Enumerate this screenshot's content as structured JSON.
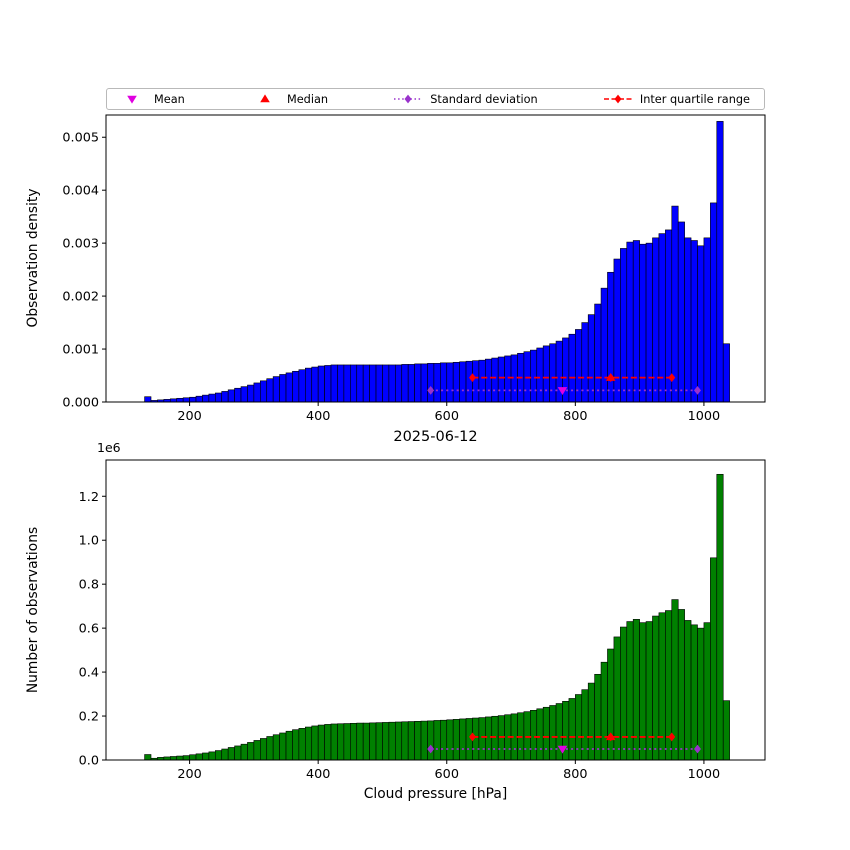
{
  "colors": {
    "mean": "#e000e0",
    "median": "#ff0000",
    "std": "#9932cc",
    "iqr": "#ff0000",
    "bar_top": "#0000ff",
    "bar_bottom": "#008000",
    "bar_edge": "#000000"
  },
  "legend": {
    "items": [
      {
        "label": "Mean",
        "marker": "triangle-down",
        "line": "none",
        "color_key": "mean",
        "icon_name": "mean-marker-icon"
      },
      {
        "label": "Median",
        "marker": "triangle-up",
        "line": "none",
        "color_key": "median",
        "icon_name": "median-marker-icon"
      },
      {
        "label": "Standard deviation",
        "marker": "diamond",
        "line": "dotted",
        "color_key": "std",
        "icon_name": "standard-deviation-icon"
      },
      {
        "label": "Inter quartile range",
        "marker": "diamond",
        "line": "dashed",
        "color_key": "iqr",
        "icon_name": "inter-quartile-range-icon"
      }
    ]
  },
  "chart_data": [
    {
      "type": "bar",
      "kind": "histogram",
      "panel": "top",
      "ylabel": "Observation density",
      "xlabel": "",
      "bar_color_key": "bar_top",
      "x_start": 130,
      "bin_width": 10,
      "xlim": [
        70,
        1095
      ],
      "ylim": [
        0,
        0.00542
      ],
      "xticks": [
        200,
        400,
        600,
        800,
        1000
      ],
      "xtick_labels": [
        "200",
        "400",
        "600",
        "800",
        "1000"
      ],
      "yticks": [
        0,
        0.001,
        0.002,
        0.003,
        0.004,
        0.005
      ],
      "ytick_labels": [
        "0.000",
        "0.001",
        "0.002",
        "0.003",
        "0.004",
        "0.005"
      ],
      "values": [
        0.0001,
        3e-05,
        4e-05,
        5e-05,
        6e-05,
        7e-05,
        8e-05,
        9e-05,
        0.00011,
        0.00013,
        0.00015,
        0.00017,
        0.0002,
        0.00023,
        0.00026,
        0.00029,
        0.00032,
        0.00036,
        0.0004,
        0.00044,
        0.00048,
        0.00052,
        0.00055,
        0.00058,
        0.00061,
        0.00064,
        0.00066,
        0.00068,
        0.00069,
        0.0007,
        0.0007,
        0.0007,
        0.0007,
        0.0007,
        0.0007,
        0.0007,
        0.0007,
        0.0007,
        0.0007,
        0.0007,
        0.00071,
        0.00071,
        0.00072,
        0.00072,
        0.00073,
        0.00073,
        0.00074,
        0.00074,
        0.00075,
        0.00076,
        0.00077,
        0.00078,
        0.00079,
        0.00081,
        0.00083,
        0.00085,
        0.00087,
        0.00089,
        0.00092,
        0.00095,
        0.00098,
        0.00102,
        0.00106,
        0.0011,
        0.00115,
        0.00121,
        0.00128,
        0.00137,
        0.0015,
        0.00165,
        0.00185,
        0.00215,
        0.00245,
        0.0027,
        0.0029,
        0.00302,
        0.00305,
        0.00298,
        0.003,
        0.0031,
        0.00318,
        0.00325,
        0.0037,
        0.0034,
        0.0031,
        0.00305,
        0.00295,
        0.0031,
        0.00376,
        0.0053,
        0.0011
      ],
      "annotations": {
        "mean": {
          "x": 780,
          "y": 0.00022
        },
        "median": {
          "x": 855,
          "y": 0.00046
        },
        "std": {
          "x1": 575,
          "x2": 990,
          "y": 0.00022
        },
        "iqr": {
          "x1": 640,
          "x2": 950,
          "y": 0.00046
        }
      }
    },
    {
      "type": "bar",
      "kind": "histogram",
      "panel": "bottom",
      "title": "2025-06-12",
      "ylabel": "Number of observations",
      "xlabel": "Cloud pressure [hPa]",
      "offset_text": "1e6",
      "bar_color_key": "bar_bottom",
      "x_start": 130,
      "bin_width": 10,
      "xlim": [
        70,
        1095
      ],
      "ylim": [
        0,
        1365000
      ],
      "xticks": [
        200,
        400,
        600,
        800,
        1000
      ],
      "xtick_labels": [
        "200",
        "400",
        "600",
        "800",
        "1000"
      ],
      "yticks": [
        0,
        200000,
        400000,
        600000,
        800000,
        1000000,
        1200000
      ],
      "ytick_labels": [
        "0.0",
        "0.2",
        "0.4",
        "0.6",
        "0.8",
        "1.0",
        "1.2"
      ],
      "values": [
        25000,
        8000,
        12000,
        14000,
        16000,
        18000,
        20000,
        24000,
        28000,
        32000,
        37000,
        43000,
        50000,
        57000,
        64000,
        72000,
        80000,
        89000,
        98000,
        107000,
        115000,
        123000,
        131000,
        138000,
        144000,
        150000,
        155000,
        159000,
        162000,
        164000,
        165000,
        166000,
        167000,
        168000,
        168000,
        169000,
        170000,
        171000,
        172000,
        173000,
        174000,
        175000,
        176000,
        177000,
        178000,
        180000,
        181000,
        183000,
        185000,
        187000,
        189000,
        191000,
        193000,
        196000,
        199000,
        202000,
        206000,
        210000,
        215000,
        220000,
        226000,
        233000,
        240000,
        248000,
        257000,
        267000,
        280000,
        298000,
        320000,
        350000,
        390000,
        445000,
        505000,
        560000,
        605000,
        630000,
        640000,
        625000,
        630000,
        655000,
        670000,
        680000,
        730000,
        685000,
        635000,
        615000,
        600000,
        625000,
        920000,
        1300000,
        270000
      ],
      "annotations": {
        "mean": {
          "x": 780,
          "y": 50000
        },
        "median": {
          "x": 855,
          "y": 105000
        },
        "std": {
          "x1": 575,
          "x2": 990,
          "y": 50000
        },
        "iqr": {
          "x1": 640,
          "x2": 950,
          "y": 105000
        }
      }
    }
  ]
}
